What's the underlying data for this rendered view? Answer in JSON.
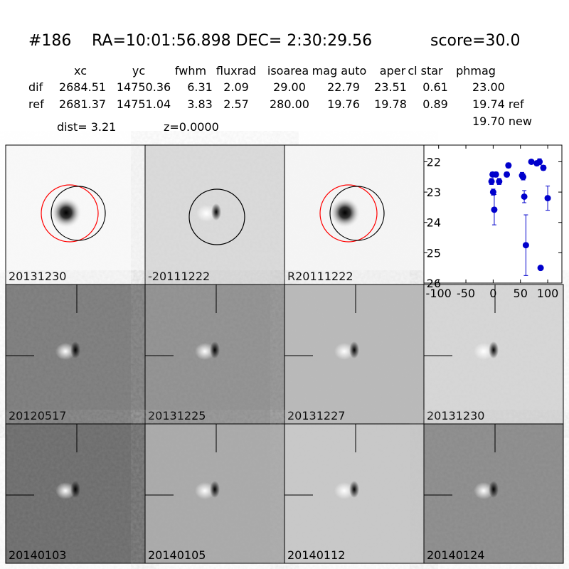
{
  "header": {
    "id": "#186",
    "coords": "RA=10:01:56.898 DEC= 2:30:29.56",
    "score": "score=30.0"
  },
  "table": {
    "columns": [
      "xc",
      "yc",
      "fwhm",
      "fluxrad",
      "isoarea",
      "mag auto",
      "aper",
      "cl star",
      "phmag"
    ],
    "rows": [
      [
        "dif",
        "2684.51",
        "14750.36",
        "6.31",
        "2.09",
        "29.00",
        "22.79",
        "23.51",
        "0.61",
        "23.00"
      ],
      [
        "ref",
        "2681.37",
        "14751.04",
        "3.83",
        "2.57",
        "280.00",
        "19.76",
        "19.78",
        "0.89",
        "19.74 ref"
      ]
    ],
    "extra": "19.70 new"
  },
  "dist": "dist=  3.21",
  "z": "z=0.0000",
  "panels": [
    {
      "label": "20131230"
    },
    {
      "label": "-20111222"
    },
    {
      "label": "R20111222"
    },
    {
      "label": "20120517"
    },
    {
      "label": "20131225"
    },
    {
      "label": "20131227"
    },
    {
      "label": "20131230",
      "color": "#ff0000"
    },
    {
      "label": "20140103"
    },
    {
      "label": "20140105"
    },
    {
      "label": "20140112"
    },
    {
      "label": "20140124"
    }
  ],
  "chart_data": {
    "type": "scatter",
    "color": "#0000cc",
    "x": [
      -3,
      -1,
      0,
      2,
      5,
      11,
      25,
      28,
      53,
      55,
      57,
      60,
      70,
      80,
      85,
      87,
      92,
      100
    ],
    "values": [
      22.65,
      22.42,
      23.0,
      23.58,
      22.42,
      22.65,
      22.42,
      22.12,
      22.45,
      22.5,
      23.15,
      24.75,
      22.0,
      22.05,
      22.0,
      25.5,
      22.2,
      23.2
    ],
    "errors": [
      0.1,
      0.08,
      0.1,
      0.5,
      0.08,
      0.1,
      0.08,
      0.08,
      0.1,
      0.1,
      0.2,
      1.0,
      0.05,
      0.08,
      0.1,
      0.05,
      0.08,
      0.4
    ],
    "xlim": [
      -127,
      126
    ],
    "ylim": [
      21.45,
      26
    ],
    "y_inverted": true,
    "xticks": [
      -100,
      -50,
      0,
      50,
      100
    ],
    "yticks": [
      22,
      23,
      24,
      25,
      26
    ]
  }
}
